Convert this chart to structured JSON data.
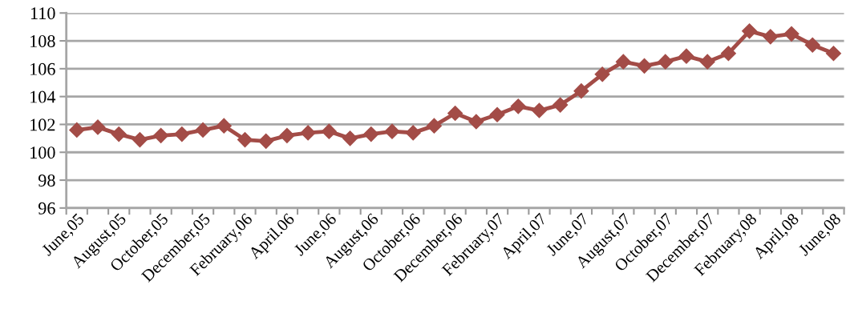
{
  "chart_data": {
    "type": "line",
    "categories": [
      "June,05",
      null,
      "August,05",
      null,
      "October,05",
      null,
      "December,05",
      null,
      "February,06",
      null,
      "April.06",
      null,
      "June,06",
      null,
      "August,06",
      null,
      "October,06",
      null,
      "December,06",
      null,
      "February,07",
      null,
      "April,07",
      null,
      "June,07",
      null,
      "August,07",
      null,
      "October,07",
      null,
      "December,07",
      null,
      "February,08",
      null,
      "April,08",
      null,
      "June,08"
    ],
    "series": [
      {
        "color": "#a34c47",
        "values": [
          101.6,
          101.8,
          101.3,
          100.9,
          101.2,
          101.3,
          101.6,
          101.9,
          100.9,
          100.8,
          101.2,
          101.4,
          101.5,
          101.0,
          101.3,
          101.5,
          101.4,
          101.9,
          102.8,
          102.2,
          102.7,
          103.3,
          103.0,
          103.4,
          104.4,
          105.6,
          106.5,
          106.2,
          106.5,
          106.9,
          106.5,
          107.1,
          108.7,
          108.3,
          108.5,
          107.7,
          107.1
        ]
      }
    ],
    "ylim": [
      96,
      110
    ],
    "yticks": [
      96,
      98,
      100,
      102,
      104,
      106,
      108,
      110
    ],
    "grid": "y",
    "marker": "diamond",
    "line_style": "solid",
    "legend": false
  }
}
